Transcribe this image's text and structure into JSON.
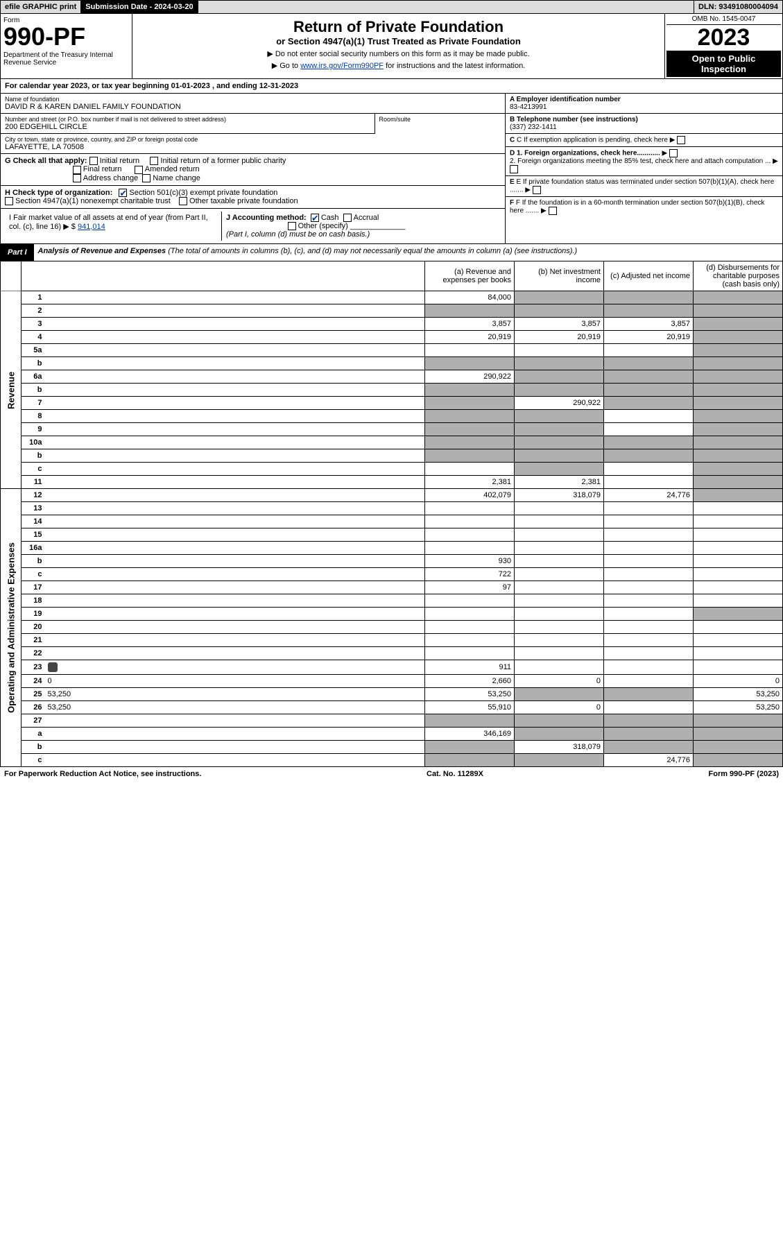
{
  "topbar": {
    "efile": "efile GRAPHIC print",
    "submission": "Submission Date - 2024-03-20",
    "dln": "DLN: 93491080004094"
  },
  "header": {
    "form_label": "Form",
    "form_number": "990-PF",
    "dept": "Department of the Treasury\nInternal Revenue Service",
    "title": "Return of Private Foundation",
    "subtitle": "or Section 4947(a)(1) Trust Treated as Private Foundation",
    "note1": "▶ Do not enter social security numbers on this form as it may be made public.",
    "note2": "▶ Go to www.irs.gov/Form990PF for instructions and the latest information.",
    "omb": "OMB No. 1545-0047",
    "year": "2023",
    "open": "Open to Public Inspection"
  },
  "calyear": "For calendar year 2023, or tax year beginning 01-01-2023  , and ending 12-31-2023",
  "name": {
    "lbl": "Name of foundation",
    "val": "DAVID R & KAREN DANIEL FAMILY FOUNDATION"
  },
  "addr1": {
    "lbl": "Number and street (or P.O. box number if mail is not delivered to street address)",
    "val": "200 EDGEHILL CIRCLE"
  },
  "room": {
    "lbl": "Room/suite",
    "val": ""
  },
  "addr2": {
    "lbl": "City or town, state or province, country, and ZIP or foreign postal code",
    "val": "LAFAYETTE, LA  70508"
  },
  "ein": {
    "lbl": "A Employer identification number",
    "val": "83-4213991"
  },
  "phone": {
    "lbl": "B Telephone number (see instructions)",
    "val": "(337) 232-1411"
  },
  "c": "C If exemption application is pending, check here",
  "d1": "D 1. Foreign organizations, check here............",
  "d2": "2. Foreign organizations meeting the 85% test, check here and attach computation ...",
  "e": "E If private foundation status was terminated under section 507(b)(1)(A), check here .......",
  "f": "F If the foundation is in a 60-month termination under section 507(b)(1)(B), check here .......",
  "g": {
    "label": "G Check all that apply:",
    "opts": [
      "Initial return",
      "Final return",
      "Address change",
      "Initial return of a former public charity",
      "Amended return",
      "Name change"
    ]
  },
  "h": {
    "label": "H Check type of organization:",
    "o1": "Section 501(c)(3) exempt private foundation",
    "o2": "Section 4947(a)(1) nonexempt charitable trust",
    "o3": "Other taxable private foundation"
  },
  "i": {
    "label": "I Fair market value of all assets at end of year (from Part II, col. (c), line 16) ▶ $",
    "val": "941,014"
  },
  "j": {
    "label": "J Accounting method:",
    "cash": "Cash",
    "accrual": "Accrual",
    "other": "Other (specify)",
    "note": "(Part I, column (d) must be on cash basis.)"
  },
  "part1": {
    "hdr": "Part I",
    "title": "Analysis of Revenue and Expenses",
    "sub": "(The total of amounts in columns (b), (c), and (d) may not necessarily equal the amounts in column (a) (see instructions).)",
    "cols": {
      "a": "(a) Revenue and expenses per books",
      "b": "(b) Net investment income",
      "c": "(c) Adjusted net income",
      "d": "(d) Disbursements for charitable purposes (cash basis only)"
    }
  },
  "side_rev": "Revenue",
  "side_exp": "Operating and Administrative Expenses",
  "rows": [
    {
      "n": "1",
      "d": "",
      "a": "84,000",
      "b": "",
      "c": "",
      "sh": [
        "b",
        "c",
        "d"
      ]
    },
    {
      "n": "2",
      "d": "",
      "a": "",
      "b": "",
      "c": "",
      "sh": [
        "a",
        "b",
        "c",
        "d"
      ]
    },
    {
      "n": "3",
      "d": "",
      "a": "3,857",
      "b": "3,857",
      "c": "3,857",
      "sh": [
        "d"
      ]
    },
    {
      "n": "4",
      "d": "",
      "a": "20,919",
      "b": "20,919",
      "c": "20,919",
      "sh": [
        "d"
      ]
    },
    {
      "n": "5a",
      "d": "",
      "a": "",
      "b": "",
      "c": "",
      "sh": [
        "d"
      ]
    },
    {
      "n": "b",
      "d": "",
      "a": "",
      "b": "",
      "c": "",
      "sh": [
        "a",
        "b",
        "c",
        "d"
      ]
    },
    {
      "n": "6a",
      "d": "",
      "a": "290,922",
      "b": "",
      "c": "",
      "sh": [
        "b",
        "c",
        "d"
      ]
    },
    {
      "n": "b",
      "d": "",
      "a": "",
      "b": "",
      "c": "",
      "sh": [
        "a",
        "b",
        "c",
        "d"
      ]
    },
    {
      "n": "7",
      "d": "",
      "a": "",
      "b": "290,922",
      "c": "",
      "sh": [
        "a",
        "c",
        "d"
      ]
    },
    {
      "n": "8",
      "d": "",
      "a": "",
      "b": "",
      "c": "",
      "sh": [
        "a",
        "b",
        "d"
      ]
    },
    {
      "n": "9",
      "d": "",
      "a": "",
      "b": "",
      "c": "",
      "sh": [
        "a",
        "b",
        "d"
      ]
    },
    {
      "n": "10a",
      "d": "",
      "a": "",
      "b": "",
      "c": "",
      "sh": [
        "a",
        "b",
        "c",
        "d"
      ]
    },
    {
      "n": "b",
      "d": "",
      "a": "",
      "b": "",
      "c": "",
      "sh": [
        "a",
        "b",
        "c",
        "d"
      ]
    },
    {
      "n": "c",
      "d": "",
      "a": "",
      "b": "",
      "c": "",
      "sh": [
        "b",
        "d"
      ]
    },
    {
      "n": "11",
      "d": "",
      "a": "2,381",
      "b": "2,381",
      "c": "",
      "sh": [
        "d"
      ]
    },
    {
      "n": "12",
      "d": "",
      "a": "402,079",
      "b": "318,079",
      "c": "24,776",
      "sh": [
        "d"
      ]
    },
    {
      "n": "13",
      "d": "",
      "a": "",
      "b": "",
      "c": ""
    },
    {
      "n": "14",
      "d": "",
      "a": "",
      "b": "",
      "c": ""
    },
    {
      "n": "15",
      "d": "",
      "a": "",
      "b": "",
      "c": ""
    },
    {
      "n": "16a",
      "d": "",
      "a": "",
      "b": "",
      "c": ""
    },
    {
      "n": "b",
      "d": "",
      "a": "930",
      "b": "",
      "c": ""
    },
    {
      "n": "c",
      "d": "",
      "a": "722",
      "b": "",
      "c": ""
    },
    {
      "n": "17",
      "d": "",
      "a": "97",
      "b": "",
      "c": ""
    },
    {
      "n": "18",
      "d": "",
      "a": "",
      "b": "",
      "c": ""
    },
    {
      "n": "19",
      "d": "",
      "a": "",
      "b": "",
      "c": "",
      "sh": [
        "d"
      ]
    },
    {
      "n": "20",
      "d": "",
      "a": "",
      "b": "",
      "c": ""
    },
    {
      "n": "21",
      "d": "",
      "a": "",
      "b": "",
      "c": ""
    },
    {
      "n": "22",
      "d": "",
      "a": "",
      "b": "",
      "c": ""
    },
    {
      "n": "23",
      "d": "",
      "a": "911",
      "b": "",
      "c": "",
      "icon": true
    },
    {
      "n": "24",
      "d": "0",
      "a": "2,660",
      "b": "0",
      "c": ""
    },
    {
      "n": "25",
      "d": "53,250",
      "a": "53,250",
      "b": "",
      "c": "",
      "sh": [
        "b",
        "c"
      ]
    },
    {
      "n": "26",
      "d": "53,250",
      "a": "55,910",
      "b": "0",
      "c": ""
    },
    {
      "n": "27",
      "d": "",
      "a": "",
      "b": "",
      "c": "",
      "sh": [
        "a",
        "b",
        "c",
        "d"
      ]
    },
    {
      "n": "a",
      "d": "",
      "a": "346,169",
      "b": "",
      "c": "",
      "sh": [
        "b",
        "c",
        "d"
      ]
    },
    {
      "n": "b",
      "d": "",
      "a": "",
      "b": "318,079",
      "c": "",
      "sh": [
        "a",
        "c",
        "d"
      ]
    },
    {
      "n": "c",
      "d": "",
      "a": "",
      "b": "",
      "c": "24,776",
      "sh": [
        "a",
        "b",
        "d"
      ]
    }
  ],
  "footer": {
    "left": "For Paperwork Reduction Act Notice, see instructions.",
    "mid": "Cat. No. 11289X",
    "right": "Form 990-PF (2023)"
  }
}
